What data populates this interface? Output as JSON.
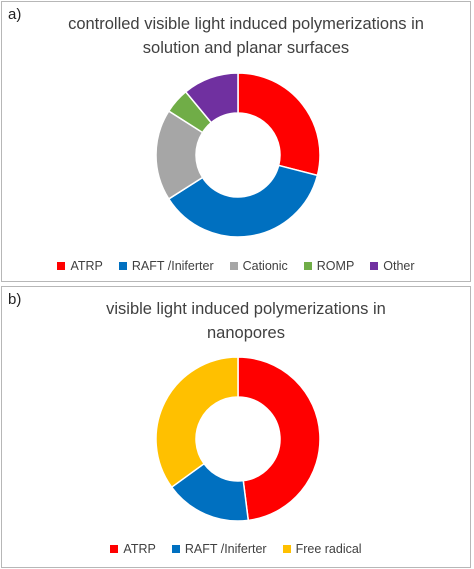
{
  "chart_data": [
    {
      "type": "pie",
      "panel_label": "a)",
      "title": "controlled visible light induced polymerizations in solution and planar surfaces",
      "title_lines": [
        "controlled visible light induced polymerizations in",
        "solution and planar surfaces"
      ],
      "categories": [
        "ATRP",
        "RAFT /Iniferter",
        "Cationic",
        "ROMP",
        "Other"
      ],
      "values": [
        29,
        37,
        18,
        5,
        11
      ],
      "colors": [
        "#ff0000",
        "#0070c0",
        "#a6a6a6",
        "#70ad47",
        "#7030a0"
      ],
      "legend_position": "bottom"
    },
    {
      "type": "pie",
      "panel_label": "b)",
      "title": "visible light induced polymerizations in nanopores",
      "title_lines": [
        "visible light induced polymerizations in",
        "nanopores"
      ],
      "categories": [
        "ATRP",
        "RAFT /Iniferter",
        "Free radical"
      ],
      "values": [
        48,
        17,
        35
      ],
      "colors": [
        "#ff0000",
        "#0070c0",
        "#ffc000"
      ],
      "legend_position": "bottom"
    }
  ]
}
